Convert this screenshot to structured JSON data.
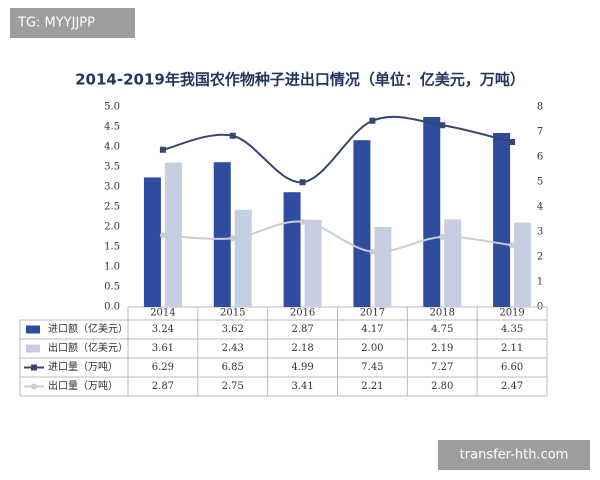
{
  "watermark": "TG: MYYJJPP",
  "footer": "transfer-hth.com",
  "chart_data": {
    "type": "bar-line",
    "title": "2014-2019年我国农作物种子进出口情况（单位：亿美元，万吨）",
    "categories": [
      "2014",
      "2015",
      "2016",
      "2017",
      "2018",
      "2019"
    ],
    "series": [
      {
        "name": "进口额（亿美元）",
        "type": "bar",
        "color": "#2f4d9f",
        "values": [
          3.24,
          3.62,
          2.87,
          4.17,
          4.75,
          4.35
        ],
        "value_labels": [
          "3.24",
          "3.62",
          "2.87",
          "4.17",
          "4.75",
          "4.35"
        ]
      },
      {
        "name": "出口额（亿美元）",
        "type": "bar",
        "color": "#c6cee2",
        "values": [
          3.61,
          2.43,
          2.18,
          2.0,
          2.19,
          2.11
        ],
        "value_labels": [
          "3.61",
          "2.43",
          "2.18",
          "2.00",
          "2.19",
          "2.11"
        ]
      },
      {
        "name": "进口量（万吨）",
        "type": "line",
        "axis": "y2",
        "color": "#35476f",
        "marker": "square",
        "values": [
          6.29,
          6.85,
          4.99,
          7.45,
          7.27,
          6.6
        ],
        "value_labels": [
          "6.29",
          "6.85",
          "4.99",
          "7.45",
          "7.27",
          "6.60"
        ]
      },
      {
        "name": "出口量（万吨）",
        "type": "line",
        "axis": "y2",
        "color": "#c9cdd6",
        "marker": "circle",
        "values": [
          2.87,
          2.75,
          3.41,
          2.21,
          2.8,
          2.47
        ],
        "value_labels": [
          "2.87",
          "2.75",
          "3.41",
          "2.21",
          "2.80",
          "2.47"
        ]
      }
    ],
    "ylim": [
      0,
      5
    ],
    "yticks": [
      {
        "value": 0,
        "label": "0.0"
      },
      0.5,
      {
        "value": 1,
        "label": "1.0"
      },
      1.5,
      {
        "value": 2,
        "label": "2.0"
      },
      2.5,
      {
        "value": 3,
        "label": "3.0"
      },
      3.5,
      {
        "value": 4,
        "label": "4.0"
      },
      4.5,
      {
        "value": 5,
        "label": "5.0"
      }
    ],
    "y2lim": [
      0,
      8
    ],
    "y2ticks": [
      0,
      1,
      2,
      3,
      4,
      5,
      6,
      7,
      8
    ]
  }
}
